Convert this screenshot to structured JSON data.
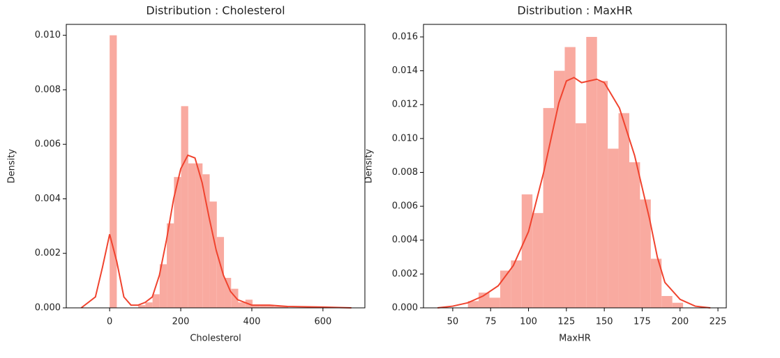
{
  "chart_data": [
    {
      "type": "histogram",
      "title": "Distribution : Cholesterol",
      "xlabel": "Cholesterol",
      "ylabel": "Density",
      "bar_color": "#f9aaa0",
      "line_color": "#f0432e",
      "bins": [
        0,
        20.1,
        40.2,
        60.3,
        80.4,
        100.5,
        120.6,
        140.7,
        160.8,
        180.9,
        201,
        221.1,
        241.2,
        261.3,
        281.4,
        301.5,
        321.6,
        341.7,
        361.8,
        381.9,
        402,
        422.1,
        442.2,
        462.3,
        482.4,
        502.5,
        522.6,
        542.7,
        562.8,
        582.9,
        603
      ],
      "values": [
        0.01,
        0,
        0,
        0,
        0.0001,
        0.0002,
        0.0005,
        0.0016,
        0.0031,
        0.0048,
        0.0074,
        0.0053,
        0.0053,
        0.0049,
        0.0039,
        0.0026,
        0.0011,
        0.0007,
        0.0002,
        0.0003,
        0.0001,
        0.0001,
        0.0001,
        5e-05,
        5e-05,
        0,
        0,
        0,
        0,
        5e-05
      ],
      "kde": {
        "x": [
          -80,
          -40,
          -20,
          0,
          20,
          40,
          60,
          80,
          100,
          120,
          140,
          160,
          180,
          200,
          220,
          240,
          260,
          280,
          300,
          320,
          340,
          360,
          400,
          450,
          500,
          600,
          680
        ],
        "y": [
          0,
          0.0004,
          0.0015,
          0.0027,
          0.0017,
          0.0004,
          0.0001,
          0.0001,
          0.0002,
          0.0004,
          0.0012,
          0.0025,
          0.004,
          0.0051,
          0.0056,
          0.0055,
          0.0046,
          0.0033,
          0.0021,
          0.0012,
          0.0006,
          0.0003,
          0.0001,
          0.0001,
          5e-05,
          3e-05,
          0
        ]
      },
      "xlim": [
        -122,
        718
      ],
      "ylim": [
        0,
        0.0104
      ],
      "xticks": [
        0,
        200,
        400,
        600
      ],
      "yticks": [
        {
          "value": 0,
          "label": "0.000"
        },
        {
          "value": 0.002,
          "label": "0.002"
        },
        {
          "value": 0.004,
          "label": "0.004"
        },
        {
          "value": 0.006,
          "label": "0.006"
        },
        {
          "value": 0.008,
          "label": "0.008"
        },
        {
          "value": 0.01,
          "label": "0.010"
        }
      ]
    },
    {
      "type": "histogram",
      "title": "Distribution : MaxHR",
      "xlabel": "MaxHR",
      "ylabel": "Density",
      "bar_color": "#f9aaa0",
      "line_color": "#f0432e",
      "bins": [
        60,
        67.1,
        74.2,
        81.3,
        88.4,
        95.5,
        102.6,
        109.7,
        116.8,
        123.9,
        131,
        138.1,
        145.2,
        152.3,
        159.4,
        166.5,
        173.6,
        180.7,
        187.8,
        194.9,
        202
      ],
      "values": [
        0.0004,
        0.0009,
        0.0006,
        0.0022,
        0.0028,
        0.0067,
        0.0056,
        0.0118,
        0.014,
        0.0154,
        0.0109,
        0.016,
        0.0134,
        0.0094,
        0.0115,
        0.0086,
        0.0064,
        0.0029,
        0.0007,
        0.0003
      ],
      "kde": {
        "x": [
          40,
          50,
          60,
          70,
          80,
          90,
          100,
          110,
          120,
          125,
          130,
          135,
          145,
          150,
          160,
          170,
          180,
          185,
          190,
          200,
          210,
          220
        ],
        "y": [
          0,
          0.0001,
          0.0003,
          0.0007,
          0.0013,
          0.0025,
          0.0045,
          0.008,
          0.0121,
          0.0134,
          0.0136,
          0.0133,
          0.0135,
          0.0133,
          0.0118,
          0.009,
          0.0052,
          0.003,
          0.0015,
          0.0005,
          0.0001,
          0
        ]
      },
      "xlim": [
        30.7,
        230.5
      ],
      "ylim": [
        0,
        0.01674
      ],
      "xticks": [
        50,
        75,
        100,
        125,
        150,
        175,
        200,
        225
      ],
      "yticks": [
        {
          "value": 0,
          "label": "0.000"
        },
        {
          "value": 0.002,
          "label": "0.002"
        },
        {
          "value": 0.004,
          "label": "0.004"
        },
        {
          "value": 0.006,
          "label": "0.006"
        },
        {
          "value": 0.008,
          "label": "0.008"
        },
        {
          "value": 0.01,
          "label": "0.010"
        },
        {
          "value": 0.012,
          "label": "0.012"
        },
        {
          "value": 0.014,
          "label": "0.014"
        },
        {
          "value": 0.016,
          "label": "0.016"
        }
      ]
    }
  ]
}
